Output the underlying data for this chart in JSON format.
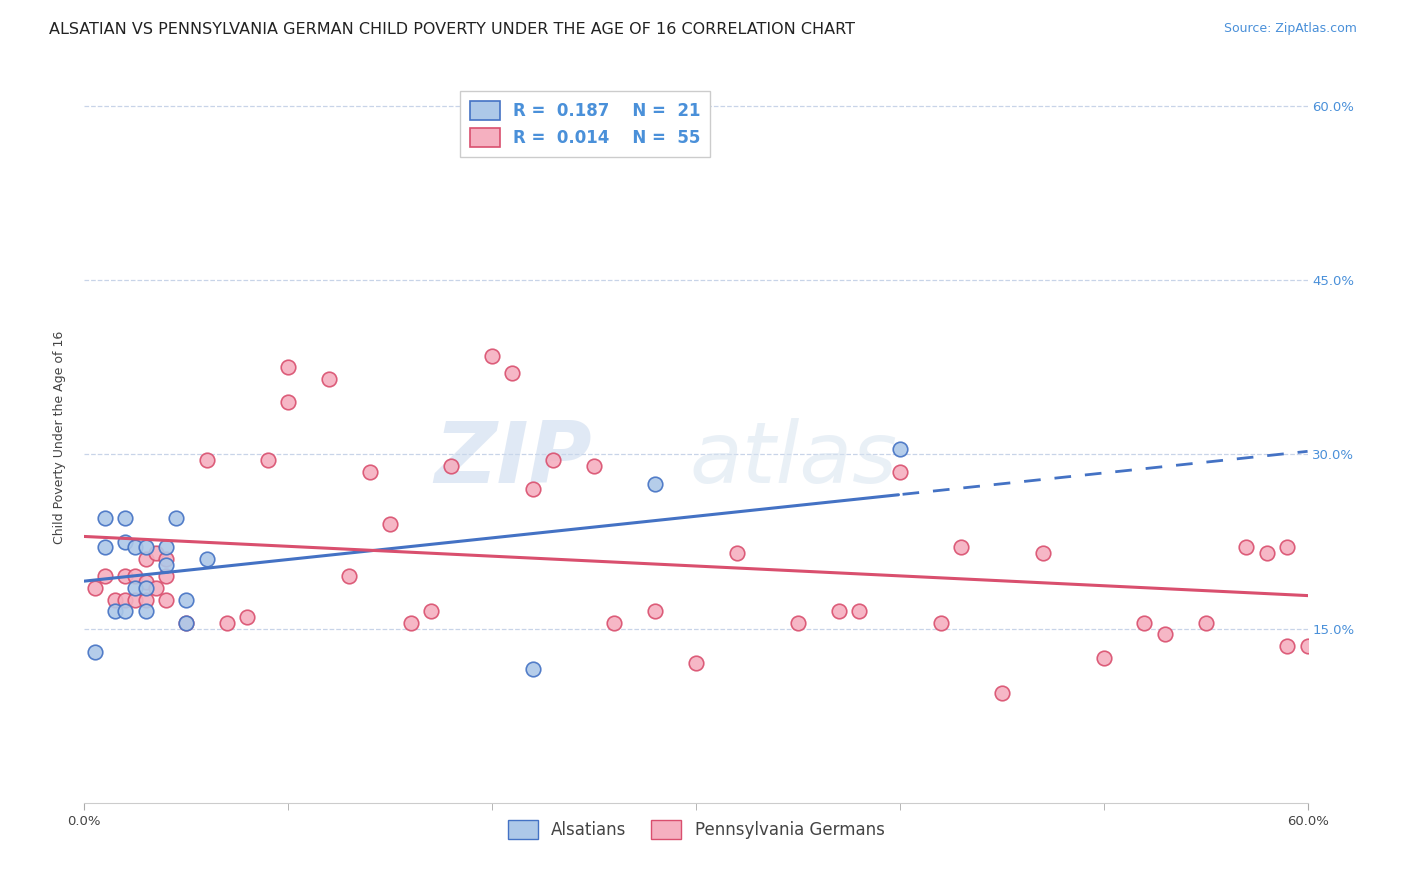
{
  "title": "ALSATIAN VS PENNSYLVANIA GERMAN CHILD POVERTY UNDER THE AGE OF 16 CORRELATION CHART",
  "source": "Source: ZipAtlas.com",
  "ylabel": "Child Poverty Under the Age of 16",
  "xlim": [
    0.0,
    0.6
  ],
  "ylim": [
    0.0,
    0.63
  ],
  "yticks": [
    0.15,
    0.3,
    0.45,
    0.6
  ],
  "ytick_labels": [
    "15.0%",
    "30.0%",
    "45.0%",
    "60.0%"
  ],
  "legend_r_alsatian": "0.187",
  "legend_n_alsatian": "21",
  "legend_r_penn": "0.014",
  "legend_n_penn": "55",
  "alsatian_color": "#adc8e8",
  "penn_color": "#f5b0c0",
  "trend_alsatian_color": "#4472c4",
  "trend_penn_color": "#d94f6e",
  "background_color": "#ffffff",
  "grid_color": "#c8d4e8",
  "alsatian_x": [
    0.005,
    0.01,
    0.01,
    0.015,
    0.02,
    0.02,
    0.02,
    0.025,
    0.025,
    0.03,
    0.03,
    0.03,
    0.04,
    0.04,
    0.045,
    0.05,
    0.05,
    0.06,
    0.22,
    0.28,
    0.4
  ],
  "alsatian_y": [
    0.13,
    0.22,
    0.245,
    0.165,
    0.225,
    0.245,
    0.165,
    0.22,
    0.185,
    0.22,
    0.185,
    0.165,
    0.205,
    0.22,
    0.245,
    0.175,
    0.155,
    0.21,
    0.115,
    0.275,
    0.305
  ],
  "penn_x": [
    0.005,
    0.01,
    0.015,
    0.02,
    0.02,
    0.025,
    0.025,
    0.03,
    0.03,
    0.03,
    0.035,
    0.035,
    0.04,
    0.04,
    0.04,
    0.05,
    0.06,
    0.07,
    0.08,
    0.09,
    0.1,
    0.1,
    0.12,
    0.13,
    0.14,
    0.15,
    0.16,
    0.17,
    0.18,
    0.2,
    0.21,
    0.22,
    0.23,
    0.25,
    0.26,
    0.28,
    0.3,
    0.32,
    0.35,
    0.37,
    0.38,
    0.4,
    0.42,
    0.43,
    0.45,
    0.47,
    0.5,
    0.52,
    0.53,
    0.55,
    0.57,
    0.58,
    0.59,
    0.59,
    0.6
  ],
  "penn_y": [
    0.185,
    0.195,
    0.175,
    0.175,
    0.195,
    0.175,
    0.195,
    0.175,
    0.19,
    0.21,
    0.185,
    0.215,
    0.195,
    0.21,
    0.175,
    0.155,
    0.295,
    0.155,
    0.16,
    0.295,
    0.345,
    0.375,
    0.365,
    0.195,
    0.285,
    0.24,
    0.155,
    0.165,
    0.29,
    0.385,
    0.37,
    0.27,
    0.295,
    0.29,
    0.155,
    0.165,
    0.12,
    0.215,
    0.155,
    0.165,
    0.165,
    0.285,
    0.155,
    0.22,
    0.095,
    0.215,
    0.125,
    0.155,
    0.145,
    0.155,
    0.22,
    0.215,
    0.22,
    0.135,
    0.135
  ],
  "watermark_zip": "ZIP",
  "watermark_atlas": "atlas",
  "title_fontsize": 11.5,
  "source_fontsize": 9,
  "axis_label_fontsize": 9,
  "tick_fontsize": 9.5,
  "legend_fontsize": 12
}
